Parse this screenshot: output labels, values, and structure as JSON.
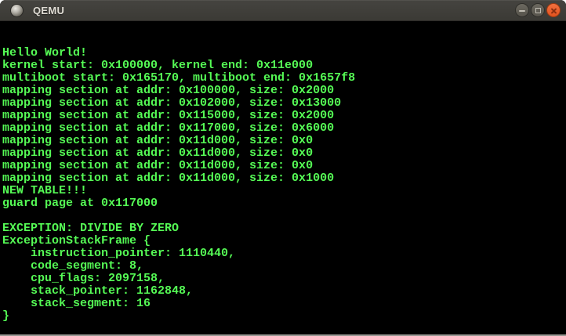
{
  "window": {
    "title": "QEMU",
    "controls": {
      "minimize_label": "minimize",
      "maximize_label": "maximize",
      "close_label": "close"
    }
  },
  "terminal": {
    "lines": [
      "Hello World!",
      "kernel start: 0x100000, kernel end: 0x11e000",
      "multiboot start: 0x165170, multiboot end: 0x1657f8",
      "mapping section at addr: 0x100000, size: 0x2000",
      "mapping section at addr: 0x102000, size: 0x13000",
      "mapping section at addr: 0x115000, size: 0x2000",
      "mapping section at addr: 0x117000, size: 0x6000",
      "mapping section at addr: 0x11d000, size: 0x0",
      "mapping section at addr: 0x11d000, size: 0x0",
      "mapping section at addr: 0x11d000, size: 0x0",
      "mapping section at addr: 0x11d000, size: 0x1000",
      "NEW TABLE!!!",
      "guard page at 0x117000",
      "",
      "EXCEPTION: DIVIDE BY ZERO",
      "ExceptionStackFrame {",
      "    instruction_pointer: 1110440,",
      "    code_segment: 8,",
      "    cpu_flags: 2097158,",
      "    stack_pointer: 1162848,",
      "    stack_segment: 16",
      "}"
    ]
  },
  "colors": {
    "terminal_text": "#55fb55",
    "terminal_background": "#000000",
    "titlebar_background": "#3f3e39",
    "close_button": "#ea5a2c",
    "bottom_border": "#989893"
  }
}
